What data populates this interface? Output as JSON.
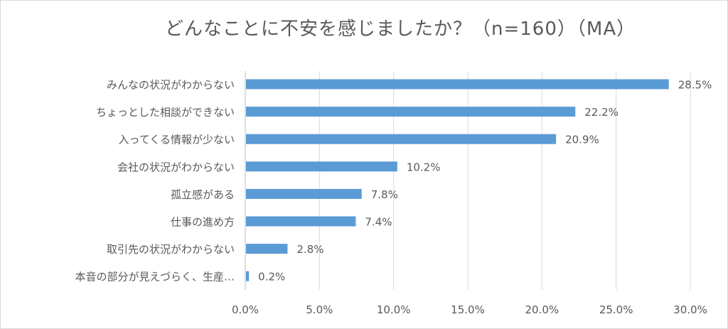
{
  "chart_data": {
    "type": "bar",
    "orientation": "horizontal",
    "title": "どんなことに不安を感じましたか？（n=160）（MA）",
    "categories": [
      "みんなの状況がわからない",
      "ちょっとした相談ができない",
      "入ってくる情報が少ない",
      "会社の状況がわからない",
      "孤立感がある",
      "仕事の進め方",
      "取引先の状況がわからない",
      "本音の部分が見えづらく、生産…"
    ],
    "values": [
      28.5,
      22.2,
      20.9,
      10.2,
      7.8,
      7.4,
      2.8,
      0.2
    ],
    "value_labels": [
      "28.5%",
      "22.2%",
      "20.9%",
      "10.2%",
      "7.8%",
      "7.4%",
      "2.8%",
      "0.2%"
    ],
    "xlim": [
      0,
      30
    ],
    "x_ticks": [
      "0.0%",
      "5.0%",
      "10.0%",
      "15.0%",
      "20.0%",
      "25.0%",
      "30.0%"
    ],
    "grid": true,
    "bar_color": "#5b9bd5"
  }
}
